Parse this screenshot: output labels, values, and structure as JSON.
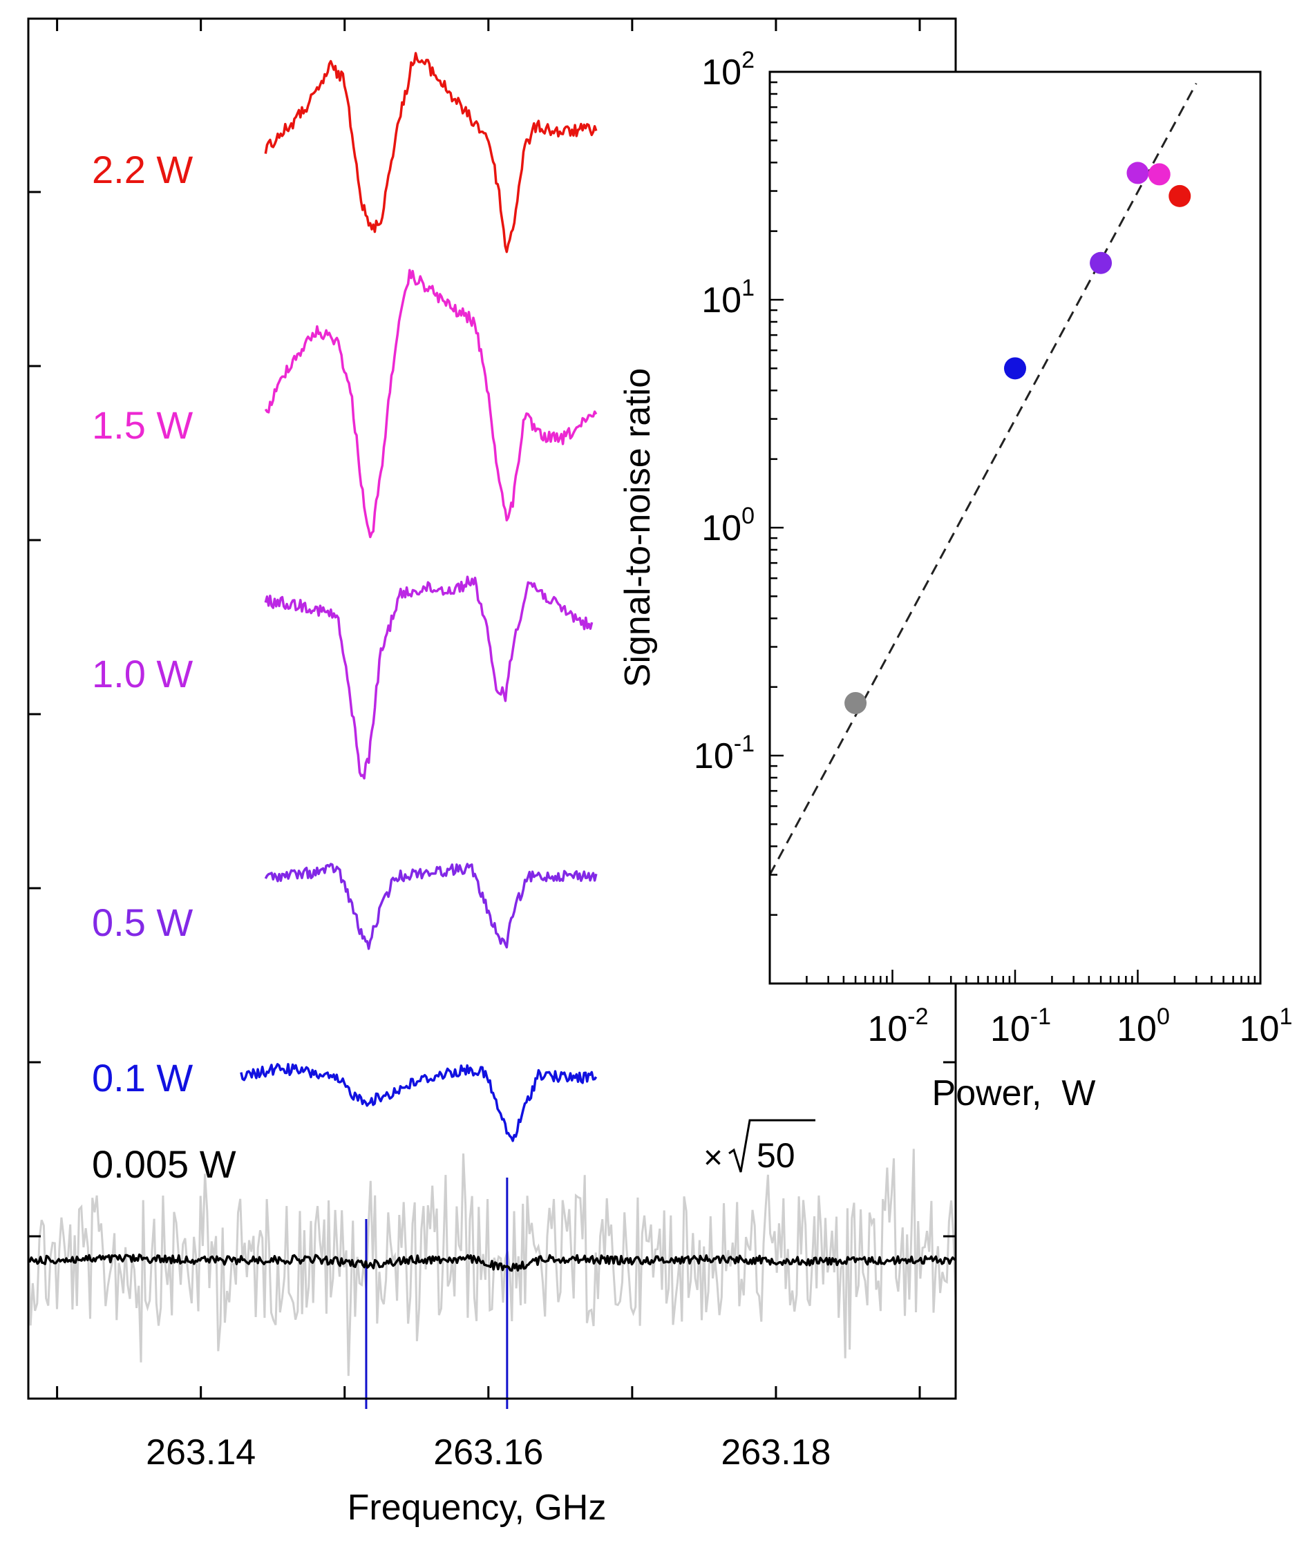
{
  "chart_data": [
    {
      "type": "line",
      "xlabel": "Frequency, GHz",
      "ylabel": "",
      "xlim": [
        263.128,
        263.1925
      ],
      "xticks": [
        263.13,
        263.14,
        263.15,
        263.16,
        263.17,
        263.18,
        263.19
      ],
      "xtick_labels": [
        "263.14",
        "263.16",
        "263.18"
      ],
      "annotation": "×√50",
      "marker_lines": [
        263.1515,
        263.1613
      ],
      "series": [
        {
          "name": "2.2 W",
          "color": "#e8140f",
          "x": [
            263.1445,
            263.1465,
            263.148,
            263.149,
            263.15,
            263.1507,
            263.1512,
            263.1518,
            263.1525,
            263.1535,
            263.1548,
            263.1558,
            263.1568,
            263.1585,
            263.16,
            263.1608,
            263.1612,
            263.1617,
            263.1625,
            263.1633,
            263.165,
            263.1675
          ],
          "y": [
            0.0,
            0.3,
            0.6,
            0.92,
            0.75,
            0.0,
            -0.62,
            -0.9,
            -0.82,
            0.1,
            1.02,
            0.92,
            0.72,
            0.38,
            0.12,
            -0.55,
            -1.15,
            -0.9,
            0.0,
            0.25,
            0.18,
            0.22
          ]
        },
        {
          "name": "1.5 W",
          "color": "#ec28d2",
          "x": [
            263.1445,
            263.146,
            263.148,
            263.1495,
            263.1505,
            263.1512,
            263.1518,
            263.1525,
            263.1535,
            263.1545,
            263.1558,
            263.1575,
            263.159,
            263.1598,
            263.1605,
            263.1612,
            263.1617,
            263.1625,
            263.1635,
            263.165,
            263.1675
          ],
          "y": [
            0.0,
            0.45,
            0.8,
            0.72,
            0.15,
            -0.7,
            -1.25,
            -0.6,
            0.65,
            1.35,
            1.22,
            1.02,
            0.9,
            0.4,
            -0.4,
            -1.0,
            -0.85,
            0.0,
            -0.2,
            -0.25,
            0.0
          ]
        },
        {
          "name": "1.0 W",
          "color": "#bb27e4",
          "x": [
            263.1445,
            263.1475,
            263.1495,
            263.1505,
            263.1512,
            263.1517,
            263.1525,
            263.1538,
            263.1555,
            263.1575,
            263.159,
            263.1598,
            263.1605,
            263.1612,
            263.1618,
            263.1628,
            263.1648,
            263.1672
          ],
          "y": [
            0.0,
            -0.05,
            -0.15,
            -1.0,
            -1.7,
            -1.45,
            -0.5,
            0.05,
            0.12,
            0.1,
            0.2,
            -0.2,
            -0.8,
            -0.88,
            -0.35,
            0.18,
            -0.05,
            -0.25
          ]
        },
        {
          "name": "0.5 W",
          "color": "#8228e6",
          "x": [
            263.1445,
            263.1475,
            263.1495,
            263.1505,
            263.1512,
            263.1517,
            263.1525,
            263.1535,
            263.155,
            263.157,
            263.1588,
            263.1598,
            263.1607,
            263.1612,
            263.1618,
            263.1628,
            263.1648,
            263.1675
          ],
          "y": [
            0.0,
            0.05,
            0.12,
            -0.35,
            -0.75,
            -0.85,
            -0.4,
            0.0,
            0.05,
            0.08,
            0.12,
            -0.35,
            -0.75,
            -0.88,
            -0.4,
            0.0,
            0.02,
            0.02
          ]
        },
        {
          "name": "0.1 W",
          "color": "#1111e0",
          "x": [
            263.1428,
            263.1455,
            263.148,
            263.1497,
            263.1508,
            263.1518,
            263.1532,
            263.155,
            263.157,
            263.1588,
            263.1598,
            263.1605,
            263.1612,
            263.1617,
            263.1625,
            263.1635,
            263.165,
            263.1675
          ],
          "y": [
            0.0,
            0.12,
            0.05,
            -0.05,
            -0.25,
            -0.3,
            -0.2,
            -0.05,
            0.05,
            0.1,
            0.05,
            -0.3,
            -0.65,
            -0.8,
            -0.4,
            0.05,
            0.0,
            0.0
          ]
        },
        {
          "name": "0.005 W",
          "color": "#000000",
          "x": [
            263.128,
            263.135,
            263.142,
            263.148,
            263.1515,
            263.155,
            263.159,
            263.1613,
            263.164,
            263.17,
            263.176,
            263.182,
            263.188,
            263.1925
          ],
          "y": [
            0.0,
            0.05,
            0.0,
            0.03,
            -0.1,
            0.02,
            0.03,
            -0.22,
            0.05,
            0.0,
            0.04,
            -0.02,
            0.0,
            0.02
          ]
        }
      ]
    },
    {
      "type": "scatter",
      "xlabel": "Power,  W",
      "ylabel": "Signal-to-noise ratio",
      "xscale": "log",
      "yscale": "log",
      "xlim": [
        0.001,
        10
      ],
      "ylim": [
        0.01,
        100
      ],
      "xtick_labels": [
        {
          "base": "10",
          "exp": "-2"
        },
        {
          "base": "10",
          "exp": "-1"
        },
        {
          "base": "10",
          "exp": "0"
        },
        {
          "base": "10",
          "exp": "1"
        }
      ],
      "ytick_labels": [
        {
          "base": "10",
          "exp": "-1"
        },
        {
          "base": "10",
          "exp": "0"
        },
        {
          "base": "10",
          "exp": "1"
        },
        {
          "base": "10",
          "exp": "2"
        }
      ],
      "points": [
        {
          "x": 0.005,
          "y": 0.17,
          "color": "#888888"
        },
        {
          "x": 0.1,
          "y": 5.0,
          "color": "#1111e0"
        },
        {
          "x": 0.5,
          "y": 14.5,
          "color": "#8228e6"
        },
        {
          "x": 1.0,
          "y": 36.0,
          "color": "#bb27e4"
        },
        {
          "x": 1.5,
          "y": 35.5,
          "color": "#ec28d2"
        },
        {
          "x": 2.2,
          "y": 28.5,
          "color": "#e8140f"
        }
      ],
      "fit_line": {
        "x": [
          0.001,
          3.0
        ],
        "y": [
          0.03,
          89
        ]
      }
    }
  ]
}
